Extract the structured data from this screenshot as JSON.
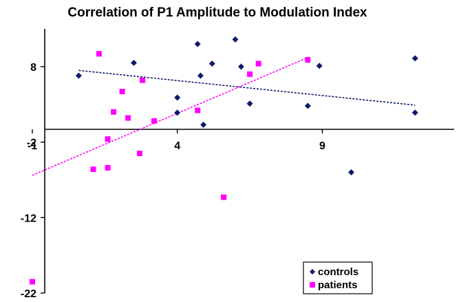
{
  "chart_data": {
    "type": "scatter",
    "title": "Correlation of P1 Amplitude to Modulation Index",
    "xlabel": "",
    "ylabel": "",
    "xlim": [
      -1,
      13
    ],
    "ylim": [
      -22,
      13
    ],
    "x_ticks": [
      -1,
      4,
      9
    ],
    "x_tick_labels": [
      "-1",
      "4",
      "9"
    ],
    "y_ticks": [
      -22,
      -12,
      -2,
      8
    ],
    "y_tick_labels": [
      "-22",
      "-12",
      "-2",
      "8"
    ],
    "grid": false,
    "legend_position": "bottom-right",
    "series": [
      {
        "name": "controls",
        "color": "#0d1a6b",
        "marker": "diamond",
        "points": [
          {
            "x": 0.6,
            "y": 6.8
          },
          {
            "x": 2.5,
            "y": 8.5
          },
          {
            "x": 4.0,
            "y": 3.9
          },
          {
            "x": 4.0,
            "y": 1.9
          },
          {
            "x": 4.7,
            "y": 11.0
          },
          {
            "x": 4.8,
            "y": 6.8
          },
          {
            "x": 4.9,
            "y": 0.3
          },
          {
            "x": 5.2,
            "y": 8.4
          },
          {
            "x": 6.0,
            "y": 11.6
          },
          {
            "x": 6.2,
            "y": 8.0
          },
          {
            "x": 6.5,
            "y": 3.1
          },
          {
            "x": 8.5,
            "y": 2.8
          },
          {
            "x": 8.9,
            "y": 8.1
          },
          {
            "x": 10.0,
            "y": -6.0
          },
          {
            "x": 12.2,
            "y": 9.1
          },
          {
            "x": 12.2,
            "y": 1.9
          }
        ],
        "trendline": {
          "x": [
            0.6,
            12.2
          ],
          "y": [
            7.5,
            2.9
          ]
        }
      },
      {
        "name": "patients",
        "color": "#ff00ff",
        "marker": "square",
        "points": [
          {
            "x": -1.0,
            "y": -20.5
          },
          {
            "x": 1.1,
            "y": -5.6
          },
          {
            "x": 1.3,
            "y": 9.7
          },
          {
            "x": 1.6,
            "y": -1.6
          },
          {
            "x": 1.6,
            "y": -5.4
          },
          {
            "x": 1.8,
            "y": 2.0
          },
          {
            "x": 2.1,
            "y": 4.7
          },
          {
            "x": 2.3,
            "y": 1.2
          },
          {
            "x": 2.7,
            "y": -3.5
          },
          {
            "x": 2.8,
            "y": 6.2
          },
          {
            "x": 3.2,
            "y": 0.8
          },
          {
            "x": 4.7,
            "y": 2.2
          },
          {
            "x": 5.6,
            "y": -9.3
          },
          {
            "x": 6.5,
            "y": 7.0
          },
          {
            "x": 6.8,
            "y": 8.4
          },
          {
            "x": 8.5,
            "y": 8.9
          }
        ],
        "trendline": {
          "x": [
            -1.0,
            8.5
          ],
          "y": [
            -6.4,
            9.2
          ]
        }
      }
    ]
  }
}
